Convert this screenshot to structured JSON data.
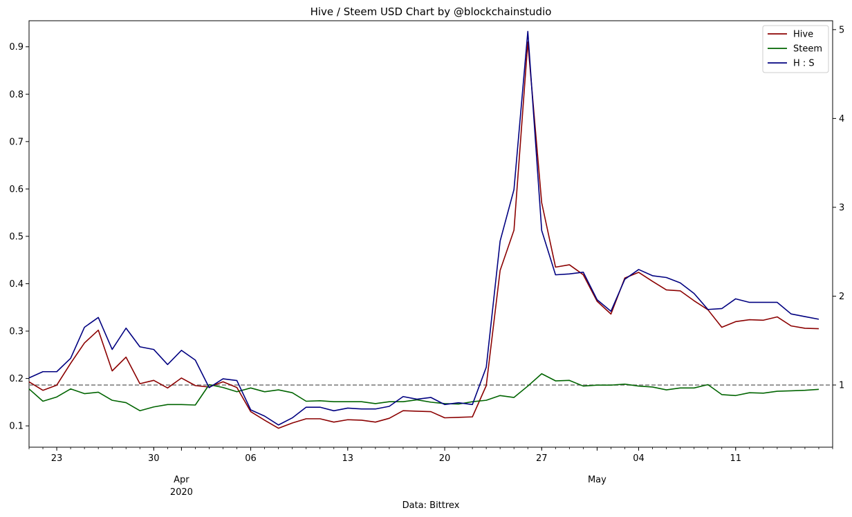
{
  "chart_data": {
    "type": "line",
    "title": "Hive / Steem USD Chart by @blockchainstudio",
    "xlabel": "Data: Bittrex",
    "x_start": "2020-03-21",
    "x_end": "2020-05-18",
    "x_ticks": [
      {
        "date": "2020-03-23",
        "label": "23"
      },
      {
        "date": "2020-03-30",
        "label": "30"
      },
      {
        "date": "2020-04-06",
        "label": "06"
      },
      {
        "date": "2020-04-13",
        "label": "13"
      },
      {
        "date": "2020-04-20",
        "label": "20"
      },
      {
        "date": "2020-04-27",
        "label": "27"
      },
      {
        "date": "2020-05-04",
        "label": "04"
      },
      {
        "date": "2020-05-11",
        "label": "11"
      }
    ],
    "x_month_labels": [
      {
        "date": "2020-04-01",
        "label": "Apr",
        "sublabel": "2020"
      },
      {
        "date": "2020-05-01",
        "label": "May",
        "sublabel": ""
      }
    ],
    "y_left": {
      "range": [
        0.055,
        0.955
      ],
      "ticks": [
        0.1,
        0.2,
        0.3,
        0.4,
        0.5,
        0.6,
        0.7,
        0.8,
        0.9
      ],
      "tick_labels": [
        "0.1",
        "0.2",
        "0.3",
        "0.4",
        "0.5",
        "0.6",
        "0.7",
        "0.8",
        "0.9"
      ]
    },
    "y_right": {
      "range": [
        0.3,
        5.1
      ],
      "ticks": [
        1,
        2,
        3,
        4,
        5
      ],
      "tick_labels": [
        "1",
        "2",
        "3",
        "4",
        "5"
      ]
    },
    "reference_line": {
      "axis": "right",
      "value": 1,
      "style": "dashed",
      "color": "#808080"
    },
    "legend_position": "top-right",
    "grid": false,
    "series": [
      {
        "name": "Hive",
        "axis": "left",
        "color": "#8b0000",
        "values": [
          0.193,
          0.175,
          0.186,
          0.232,
          0.275,
          0.302,
          0.216,
          0.245,
          0.189,
          0.196,
          0.18,
          0.201,
          0.185,
          0.182,
          0.193,
          0.181,
          0.13,
          0.112,
          0.095,
          0.106,
          0.115,
          0.115,
          0.108,
          0.113,
          0.112,
          0.108,
          0.116,
          0.132,
          0.131,
          0.13,
          0.117,
          0.118,
          0.119,
          0.185,
          0.428,
          0.513,
          0.91,
          0.571,
          0.435,
          0.44,
          0.419,
          0.363,
          0.336,
          0.412,
          0.424,
          0.405,
          0.387,
          0.385,
          0.364,
          0.345,
          0.308,
          0.32,
          0.324,
          0.323,
          0.33,
          0.311,
          0.306,
          0.305
        ]
      },
      {
        "name": "Steem",
        "axis": "left",
        "color": "#006400",
        "values": [
          0.178,
          0.152,
          0.161,
          0.178,
          0.168,
          0.171,
          0.154,
          0.149,
          0.132,
          0.14,
          0.145,
          0.145,
          0.144,
          0.187,
          0.181,
          0.172,
          0.18,
          0.172,
          0.176,
          0.17,
          0.152,
          0.153,
          0.151,
          0.151,
          0.151,
          0.147,
          0.151,
          0.151,
          0.155,
          0.15,
          0.147,
          0.146,
          0.151,
          0.154,
          0.164,
          0.16,
          0.184,
          0.21,
          0.195,
          0.196,
          0.184,
          0.186,
          0.186,
          0.188,
          0.184,
          0.182,
          0.176,
          0.18,
          0.18,
          0.187,
          0.166,
          0.164,
          0.17,
          0.169,
          0.173,
          0.174,
          0.175,
          0.177
        ]
      },
      {
        "name": "H : S",
        "axis": "right",
        "color": "#000080",
        "values": [
          1.08,
          1.15,
          1.15,
          1.3,
          1.65,
          1.76,
          1.4,
          1.64,
          1.43,
          1.4,
          1.23,
          1.39,
          1.28,
          0.97,
          1.07,
          1.05,
          0.72,
          0.65,
          0.55,
          0.63,
          0.75,
          0.75,
          0.71,
          0.74,
          0.73,
          0.73,
          0.76,
          0.87,
          0.84,
          0.86,
          0.78,
          0.8,
          0.78,
          1.2,
          2.62,
          3.2,
          4.98,
          2.74,
          2.24,
          2.25,
          2.27,
          1.96,
          1.83,
          2.19,
          2.3,
          2.23,
          2.21,
          2.15,
          2.03,
          1.85,
          1.86,
          1.97,
          1.93,
          1.93,
          1.93,
          1.8,
          1.77,
          1.74
        ]
      }
    ]
  }
}
